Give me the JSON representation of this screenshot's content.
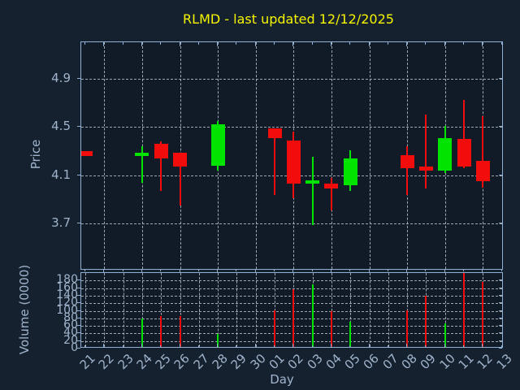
{
  "title": {
    "text": "RLMD - last updated 12/12/2025"
  },
  "colors": {
    "background": "#16212f",
    "plot_background": "#111b28",
    "frame": "#8fb0d2",
    "grid": "#b9c0c8",
    "text": "#9fb4cc",
    "title": "#f5f500",
    "up": "#00e400",
    "down": "#f20c0c"
  },
  "price_axis": {
    "label": "Price",
    "ticks": [
      4.9,
      4.5,
      4.1,
      3.7
    ],
    "range": [
      3.32,
      5.2
    ]
  },
  "volume_axis": {
    "label": "Volume (0000)",
    "ticks": [
      180,
      160,
      140,
      120,
      100,
      80,
      60,
      40,
      20,
      0
    ],
    "range": [
      0,
      200
    ]
  },
  "x_axis": {
    "label": "Day"
  },
  "chart_data": {
    "type": "candlestick",
    "title": "RLMD - last updated 12/12/2025",
    "xlabel": "Day",
    "ylabel_price": "Price",
    "ylabel_volume": "Volume (0000)",
    "grid": true,
    "price_ylim": [
      3.32,
      5.2
    ],
    "volume_ylim": [
      0,
      200
    ],
    "x_categories": [
      "21",
      "22",
      "23",
      "24",
      "25",
      "26",
      "27",
      "28",
      "29",
      "30",
      "01",
      "02",
      "03",
      "04",
      "05",
      "06",
      "07",
      "08",
      "09",
      "10",
      "11",
      "12",
      "13"
    ],
    "gridline_days": [
      "22",
      "24",
      "26",
      "28",
      "30",
      "02",
      "04",
      "06",
      "08",
      "10",
      "12"
    ],
    "ohlcv": [
      {
        "day": "21",
        "open": 4.3,
        "high": 4.3,
        "low": 4.26,
        "close": 4.26,
        "volume": 0
      },
      {
        "day": "24",
        "open": 4.26,
        "high": 4.34,
        "low": 4.04,
        "close": 4.29,
        "volume": 80
      },
      {
        "day": "25",
        "open": 4.36,
        "high": 4.38,
        "low": 3.97,
        "close": 4.24,
        "volume": 87
      },
      {
        "day": "26",
        "open": 4.29,
        "high": 4.29,
        "low": 3.85,
        "close": 4.17,
        "volume": 86
      },
      {
        "day": "28",
        "open": 4.18,
        "high": 4.55,
        "low": 4.14,
        "close": 4.52,
        "volume": 39
      },
      {
        "day": "01",
        "open": 4.49,
        "high": 4.49,
        "low": 3.94,
        "close": 4.41,
        "volume": 101
      },
      {
        "day": "02",
        "open": 4.39,
        "high": 4.46,
        "low": 3.91,
        "close": 4.03,
        "volume": 156
      },
      {
        "day": "03",
        "open": 4.03,
        "high": 4.25,
        "low": 3.69,
        "close": 4.06,
        "volume": 170
      },
      {
        "day": "04",
        "open": 4.03,
        "high": 4.08,
        "low": 3.81,
        "close": 3.99,
        "volume": 98
      },
      {
        "day": "05",
        "open": 4.02,
        "high": 4.31,
        "low": 3.97,
        "close": 4.24,
        "volume": 71
      },
      {
        "day": "08",
        "open": 4.27,
        "high": 4.34,
        "low": 3.94,
        "close": 4.16,
        "volume": 101
      },
      {
        "day": "09",
        "open": 4.17,
        "high": 4.6,
        "low": 3.99,
        "close": 4.14,
        "volume": 140
      },
      {
        "day": "10",
        "open": 4.14,
        "high": 4.51,
        "low": 4.12,
        "close": 4.41,
        "volume": 66
      },
      {
        "day": "11",
        "open": 4.4,
        "high": 4.72,
        "low": 4.16,
        "close": 4.17,
        "volume": 200
      },
      {
        "day": "12",
        "open": 4.22,
        "high": 4.59,
        "low": 4.0,
        "close": 4.05,
        "volume": 177
      }
    ]
  }
}
